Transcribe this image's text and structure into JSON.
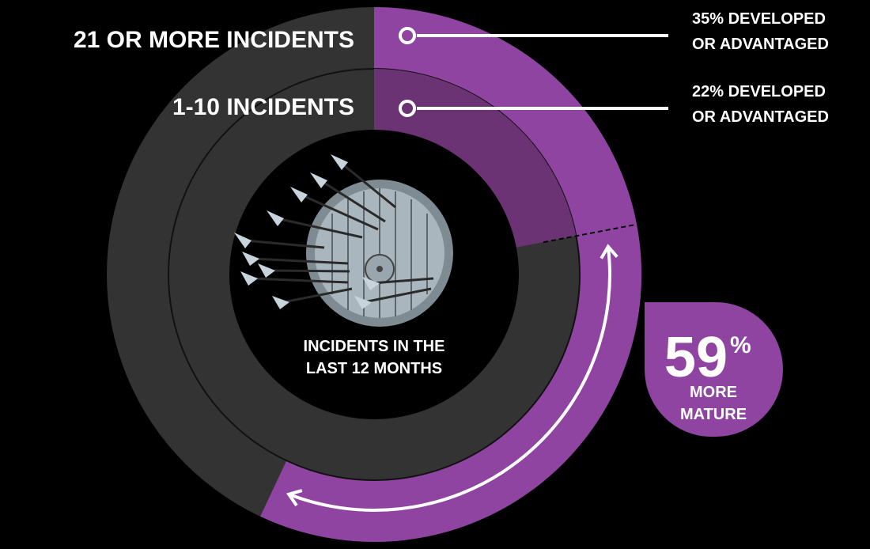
{
  "chart_data": {
    "type": "pie",
    "center_title": [
      "INCIDENTS IN THE",
      "LAST 12 MONTHS"
    ],
    "rings": [
      {
        "ring": "outer",
        "label": "21 OR MORE INCIDENTS",
        "value_percent": 35,
        "value_label": [
          "35% DEVELOPED",
          "OR ADVANTAGED"
        ]
      },
      {
        "ring": "inner",
        "label": "1-10 INCIDENTS",
        "value_percent": 22,
        "value_label": [
          "22% DEVELOPED",
          "OR ADVANTAGED"
        ]
      }
    ],
    "callout": {
      "value": "59",
      "unit": "%",
      "lines": [
        "MORE",
        "MATURE"
      ]
    }
  },
  "colors": {
    "background": "#000000",
    "ring_base": "#333333",
    "outer_highlight": "#8e44a0",
    "inner_highlight": "#6b3373",
    "callout": "#8e44a0",
    "text": "#ffffff",
    "shield": "#9aa6ae",
    "arrow": "#c7d4dc"
  },
  "icons": {
    "center": "shield-with-arrows-icon",
    "marker": "ring-marker-icon",
    "comparison": "double-headed-arrow-icon"
  }
}
